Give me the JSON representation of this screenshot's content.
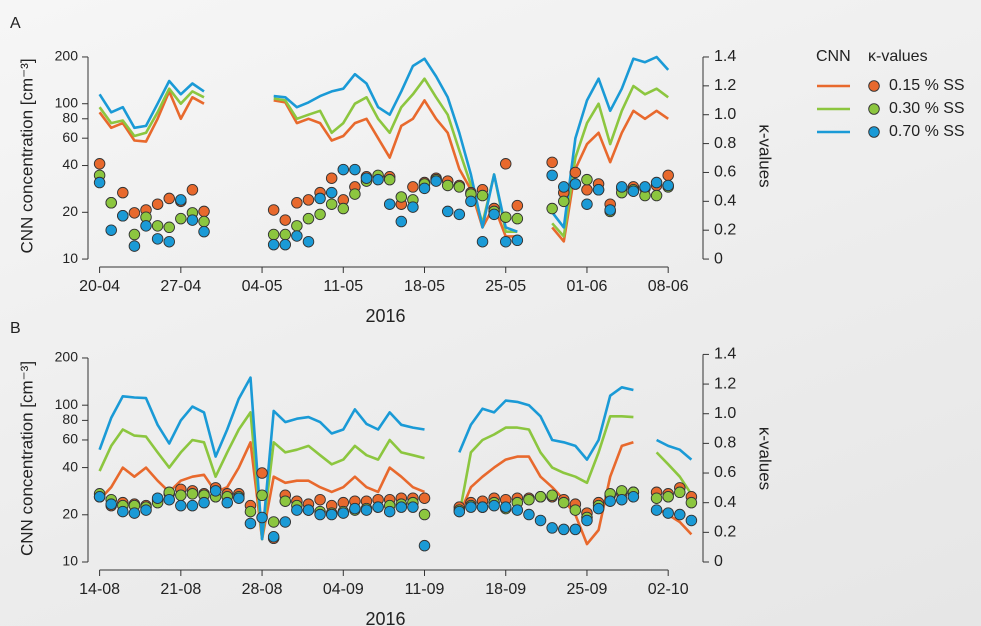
{
  "chart_data": [
    {
      "type": "line",
      "label": "A",
      "ylabel": "CNN concentration [cm⁻³]",
      "y2label": "κ-values",
      "xlabel": "2016",
      "legend_title": "CNN",
      "legend_marker_title": "κ-values",
      "ylog": true,
      "xlim": [
        "2016-04-19",
        "2016-06-11"
      ],
      "xticks": [
        {
          "value": "2016-04-20",
          "label": "20-04"
        },
        {
          "value": "2016-04-27",
          "label": "27-04"
        },
        {
          "value": "2016-05-04",
          "label": "04-05"
        },
        {
          "value": "2016-05-11",
          "label": "11-05"
        },
        {
          "value": "2016-05-18",
          "label": "18-05"
        },
        {
          "value": "2016-05-25",
          "label": "25-05"
        },
        {
          "value": "2016-06-01",
          "label": "01-06"
        },
        {
          "value": "2016-06-08",
          "label": "08-06"
        }
      ],
      "ylim": [
        8.89,
        238.8
      ],
      "yticks": [
        10,
        20,
        40,
        60,
        80,
        100,
        200
      ],
      "y2lim": [
        -0.055,
        1.483
      ],
      "y2ticks": [
        0,
        0.2,
        0.4,
        0.6,
        0.8,
        {
          "value": 1,
          "label": "1.0"
        },
        1.2,
        1.4
      ],
      "x": [
        "2016-04-20",
        "2016-04-21",
        "2016-04-22",
        "2016-04-23",
        "2016-04-24",
        "2016-04-25",
        "2016-04-26",
        "2016-04-27",
        "2016-04-28",
        "2016-04-29",
        "2016-05-02",
        "2016-05-05",
        "2016-05-06",
        "2016-05-07",
        "2016-05-08",
        "2016-05-09",
        "2016-05-10",
        "2016-05-11",
        "2016-05-12",
        "2016-05-13",
        "2016-05-14",
        "2016-05-15",
        "2016-05-16",
        "2016-05-17",
        "2016-05-18",
        "2016-05-19",
        "2016-05-20",
        "2016-05-21",
        "2016-05-22",
        "2016-05-23",
        "2016-05-24",
        "2016-05-25",
        "2016-05-26",
        "2016-05-28",
        "2016-05-29",
        "2016-05-30",
        "2016-05-31",
        "2016-06-01",
        "2016-06-02",
        "2016-06-03",
        "2016-06-04",
        "2016-06-05",
        "2016-06-06",
        "2016-06-07",
        "2016-06-08"
      ],
      "series": [
        {
          "type": "line",
          "name": "0.15 % SS",
          "color": "#e8692d",
          "values": [
            88,
            70,
            75,
            58,
            57,
            80,
            120,
            80,
            110,
            100,
            null,
            105,
            102,
            75,
            80,
            75,
            58,
            62,
            75,
            80,
            60,
            45,
            72,
            80,
            105,
            80,
            65,
            38,
            28,
            16,
            22,
            14,
            14,
            null,
            16,
            13,
            38,
            55,
            65,
            42,
            65,
            90,
            80,
            90,
            80
          ]
        },
        {
          "type": "line",
          "name": "0.30 % SS",
          "color": "#8cc63f",
          "values": [
            95,
            75,
            78,
            62,
            65,
            88,
            125,
            100,
            120,
            110,
            null,
            108,
            105,
            80,
            85,
            90,
            65,
            75,
            100,
            110,
            80,
            65,
            95,
            115,
            145,
            110,
            85,
            50,
            30,
            17,
            35,
            15,
            15,
            null,
            17,
            14,
            45,
            75,
            100,
            55,
            90,
            130,
            115,
            125,
            110
          ]
        },
        {
          "type": "line",
          "name": "0.70 % SS",
          "color": "#1a9ad6",
          "values": [
            115,
            88,
            95,
            70,
            72,
            100,
            140,
            115,
            135,
            120,
            null,
            112,
            110,
            95,
            102,
            112,
            120,
            125,
            155,
            135,
            95,
            85,
            120,
            175,
            195,
            150,
            110,
            65,
            35,
            16,
            35,
            16,
            15,
            null,
            20,
            16,
            60,
            105,
            145,
            90,
            125,
            195,
            185,
            200,
            165
          ]
        },
        {
          "type": "scatter",
          "axis": "y2",
          "color": "#e8692d",
          "values": [
            0.66,
            0.39,
            0.46,
            0.32,
            0.34,
            0.38,
            0.42,
            0.4,
            0.48,
            0.33,
            null,
            0.34,
            0.27,
            0.39,
            0.41,
            0.46,
            0.56,
            0.41,
            0.5,
            0.57,
            0.57,
            0.57,
            0.38,
            0.5,
            0.53,
            0.56,
            0.54,
            0.51,
            0.46,
            0.48,
            0.35,
            0.66,
            0.37,
            null,
            0.67,
            0.46,
            0.6,
            0.48,
            0.52,
            0.38,
            0.49,
            0.5,
            0.49,
            0.51,
            0.58
          ]
        },
        {
          "type": "scatter",
          "axis": "y2",
          "color": "#8cc63f",
          "values": [
            0.58,
            0.39,
            0.3,
            0.17,
            0.29,
            0.23,
            0.22,
            0.28,
            0.32,
            0.26,
            null,
            0.17,
            0.17,
            0.23,
            0.28,
            0.31,
            0.38,
            0.35,
            0.45,
            0.54,
            0.58,
            0.55,
            0.43,
            0.41,
            0.52,
            0.55,
            0.51,
            0.5,
            0.45,
            0.44,
            0.33,
            0.29,
            0.28,
            null,
            0.35,
            0.4,
            0.52,
            0.55,
            0.48,
            0.33,
            0.46,
            0.48,
            0.44,
            0.44,
            0.5
          ]
        },
        {
          "type": "scatter",
          "axis": "y2",
          "color": "#1a9ad6",
          "values": [
            0.53,
            0.2,
            0.3,
            0.09,
            0.23,
            0.14,
            0.12,
            0.41,
            0.27,
            0.19,
            null,
            0.1,
            0.1,
            0.16,
            0.12,
            0.42,
            0.46,
            0.62,
            0.62,
            0.56,
            0.55,
            0.38,
            0.26,
            0.36,
            0.49,
            0.54,
            0.33,
            0.31,
            0.4,
            0.12,
            0.31,
            0.12,
            0.13,
            null,
            0.58,
            0.5,
            0.52,
            0.38,
            0.48,
            0.34,
            0.5,
            0.47,
            0.5,
            0.53,
            0.51
          ]
        }
      ]
    },
    {
      "type": "line",
      "label": "B",
      "ylabel": "CNN concentration [cm⁻³]",
      "y2label": "κ-values",
      "xlabel": "2016",
      "ylog": true,
      "xlim": [
        "2016-08-13",
        "2016-10-05"
      ],
      "xticks": [
        {
          "value": "2016-08-14",
          "label": "14-08"
        },
        {
          "value": "2016-08-21",
          "label": "21-08"
        },
        {
          "value": "2016-08-28",
          "label": "28-08"
        },
        {
          "value": "2016-09-04",
          "label": "04-09"
        },
        {
          "value": "2016-09-11",
          "label": "11-09"
        },
        {
          "value": "2016-09-18",
          "label": "18-09"
        },
        {
          "value": "2016-09-25",
          "label": "25-09"
        },
        {
          "value": "2016-10-02",
          "label": "02-10"
        }
      ],
      "ylim": [
        8.89,
        235
      ],
      "yticks": [
        10,
        20,
        40,
        60,
        80,
        100,
        200
      ],
      "y2lim": [
        -0.054,
        1.45
      ],
      "y2ticks": [
        0,
        0.2,
        0.4,
        0.6,
        0.8,
        {
          "value": 1,
          "label": "1.0"
        },
        1.2,
        1.4
      ],
      "x": [
        "2016-08-14",
        "2016-08-15",
        "2016-08-16",
        "2016-08-17",
        "2016-08-18",
        "2016-08-19",
        "2016-08-20",
        "2016-08-21",
        "2016-08-22",
        "2016-08-23",
        "2016-08-24",
        "2016-08-25",
        "2016-08-26",
        "2016-08-27",
        "2016-08-28",
        "2016-08-29",
        "2016-08-30",
        "2016-08-31",
        "2016-09-01",
        "2016-09-02",
        "2016-09-03",
        "2016-09-04",
        "2016-09-05",
        "2016-09-06",
        "2016-09-07",
        "2016-09-08",
        "2016-09-09",
        "2016-09-10",
        "2016-09-11",
        "2016-09-13",
        "2016-09-14",
        "2016-09-15",
        "2016-09-16",
        "2016-09-17",
        "2016-09-18",
        "2016-09-19",
        "2016-09-20",
        "2016-09-21",
        "2016-09-22",
        "2016-09-23",
        "2016-09-24",
        "2016-09-25",
        "2016-09-26",
        "2016-09-27",
        "2016-09-28",
        "2016-09-29",
        "2016-09-30",
        "2016-10-01",
        "2016-10-02",
        "2016-10-03",
        "2016-10-04"
      ],
      "series": [
        {
          "type": "line",
          "color": "#e8692d",
          "values": [
            25,
            30,
            40,
            35,
            40,
            33,
            28,
            33,
            35,
            36,
            28,
            30,
            40,
            58,
            14,
            35,
            32,
            33,
            33,
            30,
            28,
            30,
            35,
            30,
            28,
            40,
            35,
            30,
            28,
            null,
            20,
            30,
            35,
            40,
            45,
            47,
            47,
            35,
            30,
            25,
            20,
            13,
            16,
            35,
            55,
            58,
            null,
            22,
            20,
            18,
            15
          ]
        },
        {
          "type": "line",
          "color": "#8cc63f",
          "values": [
            38,
            55,
            70,
            64,
            63,
            50,
            40,
            50,
            60,
            58,
            35,
            50,
            70,
            90,
            14,
            58,
            50,
            52,
            55,
            48,
            42,
            45,
            55,
            48,
            45,
            60,
            50,
            48,
            46,
            null,
            20,
            50,
            60,
            65,
            72,
            72,
            70,
            50,
            40,
            37,
            35,
            32,
            50,
            85,
            85,
            84,
            null,
            50,
            42,
            35,
            27
          ]
        },
        {
          "type": "line",
          "color": "#1a9ad6",
          "values": [
            52,
            83,
            114,
            112,
            111,
            75,
            57,
            80,
            98,
            90,
            47,
            70,
            110,
            150,
            14,
            92,
            78,
            82,
            84,
            78,
            66,
            70,
            94,
            76,
            70,
            90,
            75,
            72,
            70,
            null,
            50,
            75,
            95,
            90,
            107,
            105,
            100,
            85,
            60,
            58,
            55,
            45,
            60,
            115,
            130,
            125,
            null,
            60,
            55,
            52,
            45
          ]
        },
        {
          "type": "scatter",
          "axis": "y2",
          "color": "#e8692d",
          "values": [
            0.44,
            0.38,
            0.4,
            0.39,
            0.38,
            0.42,
            0.46,
            0.49,
            0.48,
            0.46,
            0.5,
            0.46,
            0.46,
            0.38,
            0.6,
            0.16,
            0.45,
            0.41,
            0.39,
            0.42,
            0.38,
            0.4,
            0.41,
            0.41,
            0.42,
            0.42,
            0.43,
            0.43,
            0.43,
            null,
            0.37,
            0.4,
            0.41,
            0.43,
            0.42,
            0.43,
            0.43,
            0.44,
            0.44,
            0.42,
            0.39,
            0.33,
            0.4,
            0.45,
            0.46,
            0.47,
            null,
            0.47,
            0.46,
            0.5,
            0.44
          ]
        },
        {
          "type": "scatter",
          "axis": "y2",
          "color": "#8cc63f",
          "values": [
            0.46,
            0.42,
            0.38,
            0.38,
            0.37,
            0.4,
            0.47,
            0.45,
            0.46,
            0.45,
            0.44,
            0.44,
            0.44,
            0.34,
            0.45,
            0.27,
            0.41,
            0.38,
            0.35,
            0.34,
            0.33,
            0.34,
            0.35,
            0.36,
            0.37,
            0.38,
            0.39,
            0.4,
            0.32,
            null,
            0.35,
            0.38,
            0.37,
            0.4,
            0.36,
            0.4,
            0.42,
            0.44,
            0.45,
            0.4,
            0.35,
            0.3,
            0.38,
            0.46,
            0.48,
            0.47,
            null,
            0.43,
            0.44,
            0.47,
            0.4
          ]
        },
        {
          "type": "scatter",
          "axis": "y2",
          "color": "#1a9ad6",
          "values": [
            0.44,
            0.39,
            0.34,
            0.33,
            0.35,
            0.43,
            0.42,
            0.38,
            0.38,
            0.4,
            0.48,
            0.4,
            0.43,
            0.26,
            0.3,
            0.17,
            0.27,
            0.35,
            0.35,
            0.32,
            0.32,
            0.33,
            0.36,
            0.35,
            0.37,
            0.34,
            0.37,
            0.37,
            0.11,
            null,
            0.34,
            0.37,
            0.37,
            0.38,
            0.37,
            0.35,
            0.32,
            0.28,
            0.23,
            0.22,
            0.22,
            0.28,
            0.36,
            0.41,
            0.42,
            0.44,
            null,
            0.35,
            0.33,
            0.32,
            0.28
          ]
        }
      ]
    }
  ]
}
